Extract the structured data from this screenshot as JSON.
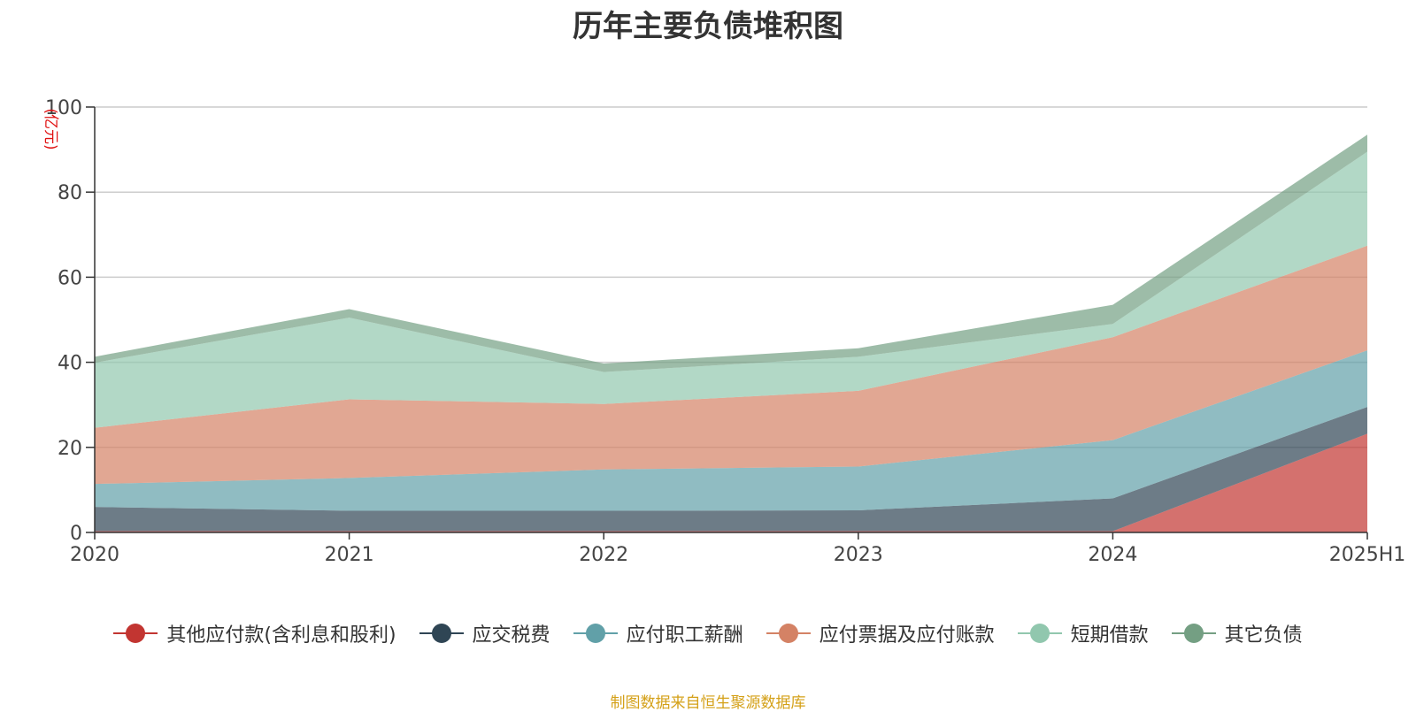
{
  "chart_data": {
    "type": "area",
    "stacked": true,
    "title": "历年主要负债堆积图",
    "ylabel": "(亿元)",
    "xlabel": "",
    "categories": [
      "2020",
      "2021",
      "2022",
      "2023",
      "2024",
      "2025H1"
    ],
    "ylim": [
      0,
      100
    ],
    "yticks": [
      0,
      20,
      40,
      60,
      80,
      100
    ],
    "grid": true,
    "legend_position": "bottom",
    "series": [
      {
        "name": "其他应付款(含利息和股利)",
        "color": "#c23531",
        "values": [
          0.3,
          0.3,
          0.3,
          0.3,
          0.3,
          23.2
        ]
      },
      {
        "name": "应交税费",
        "color": "#2f4554",
        "values": [
          5.7,
          4.8,
          4.8,
          4.9,
          7.7,
          6.3
        ]
      },
      {
        "name": "应付职工薪酬",
        "color": "#61a0a8",
        "values": [
          5.4,
          7.7,
          9.7,
          10.3,
          13.7,
          13.3
        ]
      },
      {
        "name": "应付票据及应付账款",
        "color": "#d48265",
        "values": [
          13.2,
          18.5,
          15.4,
          17.8,
          24.2,
          24.6
        ]
      },
      {
        "name": "短期借款",
        "color": "#91c7ae",
        "values": [
          15.3,
          19.2,
          7.5,
          8.0,
          3.1,
          22.1
        ]
      },
      {
        "name": "其它负债",
        "color": "#749f83",
        "values": [
          1.4,
          2.0,
          2.0,
          2.0,
          4.5,
          4.0
        ]
      }
    ]
  },
  "source": "制图数据来自恒生聚源数据库"
}
